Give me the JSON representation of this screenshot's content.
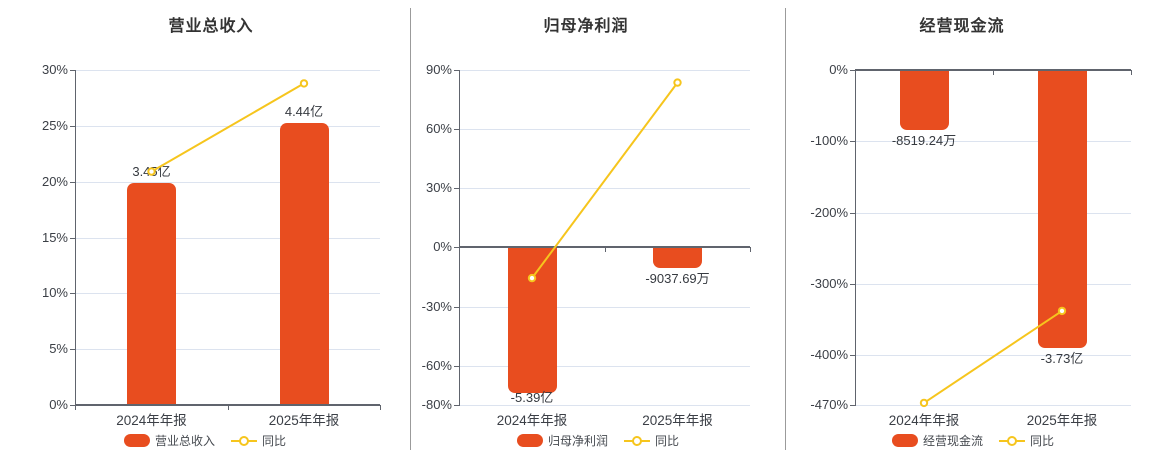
{
  "page": {
    "background": "#ffffff"
  },
  "colors": {
    "bar": "#e84d1f",
    "line": "#f6c51d",
    "grid": "#dce3ef",
    "axis": "#60646d",
    "separator": "#9b9b9b",
    "title_text": "#333333",
    "tick_text": "#3b3f46",
    "value_text": "#363a40",
    "legend_text": "#464a50"
  },
  "chart_data": [
    {
      "type": "bar",
      "title": "营业总收入",
      "categories": [
        "2024年年报",
        "2025年年报"
      ],
      "ylim": [
        0,
        30
      ],
      "grid": "on",
      "legend_position": "bottom",
      "yticks": [
        {
          "label": "30%",
          "value": 30
        },
        {
          "label": "25%",
          "value": 25
        },
        {
          "label": "20%",
          "value": 20
        },
        {
          "label": "15%",
          "value": 15
        },
        {
          "label": "10%",
          "value": 10
        },
        {
          "label": "5%",
          "value": 5
        },
        {
          "label": "0%",
          "value": 0
        }
      ],
      "series": [
        {
          "name": "营业总收入",
          "type": "bar",
          "value_labels": [
            "3.45亿",
            "4.44亿"
          ],
          "bar_extent_pct": [
            19.9,
            25.3
          ]
        },
        {
          "name": "同比",
          "type": "line",
          "values_pct": [
            20.9,
            28.8
          ]
        }
      ]
    },
    {
      "type": "bar",
      "title": "归母净利润",
      "categories": [
        "2024年年报",
        "2025年年报"
      ],
      "ylim": [
        -80,
        90
      ],
      "grid": "on",
      "legend_position": "bottom",
      "yticks": [
        {
          "label": "90%",
          "value": 90
        },
        {
          "label": "60%",
          "value": 60
        },
        {
          "label": "30%",
          "value": 30
        },
        {
          "label": "0%",
          "value": 0
        },
        {
          "label": "-30%",
          "value": -30
        },
        {
          "label": "-60%",
          "value": -60
        },
        {
          "label": "-80%",
          "value": -80
        }
      ],
      "series": [
        {
          "name": "归母净利润",
          "type": "bar",
          "value_labels": [
            "-5.39亿",
            "-9037.69万"
          ],
          "bar_extent_pct": [
            -74,
            -10.7
          ]
        },
        {
          "name": "同比",
          "type": "line",
          "values_pct": [
            -15.6,
            83.6
          ]
        }
      ]
    },
    {
      "type": "bar",
      "title": "经营现金流",
      "categories": [
        "2024年年报",
        "2025年年报"
      ],
      "ylim": [
        -470,
        0
      ],
      "grid": "on",
      "legend_position": "bottom",
      "yticks": [
        {
          "label": "0%",
          "value": 0
        },
        {
          "label": "-100%",
          "value": -100
        },
        {
          "label": "-200%",
          "value": -200
        },
        {
          "label": "-300%",
          "value": -300
        },
        {
          "label": "-400%",
          "value": -400
        },
        {
          "label": "-470%",
          "value": -470
        }
      ],
      "series": [
        {
          "name": "经营现金流",
          "type": "bar",
          "value_labels": [
            "-8519.24万",
            "-3.73亿"
          ],
          "bar_extent_pct": [
            -84,
            -390
          ]
        },
        {
          "name": "同比",
          "type": "line",
          "values_pct": [
            -467,
            -338
          ]
        }
      ]
    }
  ]
}
